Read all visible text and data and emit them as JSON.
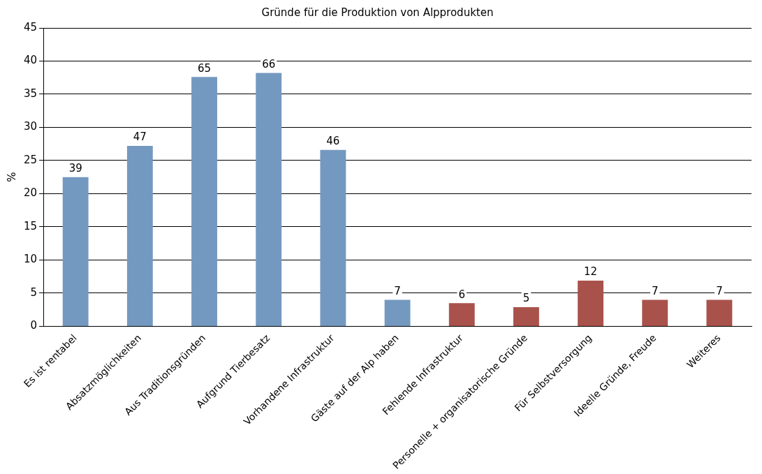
{
  "chart_data": {
    "type": "bar",
    "title": "Gründe für die Produktion von Alpprodukten",
    "ylabel": "%",
    "categories": [
      "Es ist rentabel",
      "Absatzmöglichkeiten",
      "Aus Traditionsgründen",
      "Aufgrund Tierbesatz",
      "Vorhandene Infrastruktur",
      "Gäste auf der Alp haben",
      "Fehlende Infrastruktur",
      "Personelle + organisatorische Gründe",
      "Für Selbstversorgung",
      "Ideelle Gründe, Freude",
      "Weiteres"
    ],
    "values": [
      22.5,
      27.2,
      37.6,
      38.2,
      26.6,
      4.0,
      3.5,
      2.9,
      6.9,
      4.0,
      4.0
    ],
    "colors": [
      "#7499c0",
      "#7499c0",
      "#7499c0",
      "#7499c0",
      "#7499c0",
      "#7499c0",
      "#a9524c",
      "#a9524c",
      "#a9524c",
      "#a9524c",
      "#a9524c"
    ],
    "annotations": [
      {
        "text": "39",
        "x": "Es ist rentabel",
        "y": 22.5
      },
      {
        "text": "47",
        "x": "Absatzmöglichkeiten",
        "y": 27.2
      },
      {
        "text": "65",
        "x": "Aus Traditionsgründen",
        "y": 37.6
      },
      {
        "text": "66",
        "x": "Aufgrund Tierbesatz",
        "y": 38.2
      },
      {
        "text": "46",
        "x": "Vorhandene Infrastruktur",
        "y": 26.6
      },
      {
        "text": "7",
        "x": "Gäste auf der Alp haben",
        "y": 4.0
      },
      {
        "text": "6",
        "x": "Fehlende Infrastruktur",
        "y": 3.5
      },
      {
        "text": "5",
        "x": "Personelle + organisatorische Gründe",
        "y": 2.9
      },
      {
        "text": "12",
        "x": "Für Selbstversorgung",
        "y": 6.9
      },
      {
        "text": "7",
        "x": "Ideelle Gründe, Freude",
        "y": 4.0
      },
      {
        "text": "7",
        "x": "Weiteres",
        "y": 4.0
      }
    ],
    "ylim": [
      0,
      45
    ],
    "yticks": [
      0,
      5,
      10,
      15,
      20,
      25,
      30,
      35,
      40,
      45
    ],
    "grid": "y",
    "legend": false
  }
}
